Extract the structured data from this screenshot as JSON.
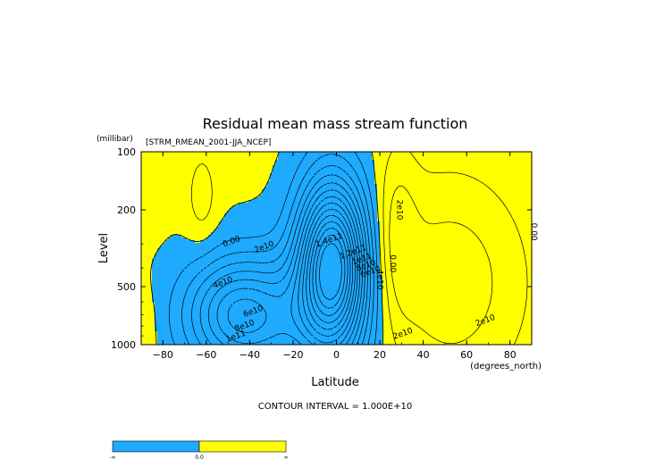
{
  "chart_data": {
    "type": "contour",
    "title": "Residual mean mass stream function",
    "subtitle": "[STRM_RMEAN_2001-JJA_NCEP]",
    "xlabel": "Latitude",
    "xunits": "(degrees_north)",
    "ylabel": "Level",
    "yunits": "(millibar)",
    "xlim": [
      -90,
      90
    ],
    "ylim": [
      1000,
      100
    ],
    "yscale": "log",
    "x_ticks": [
      -80,
      -60,
      -40,
      -20,
      0,
      20,
      40,
      60,
      80
    ],
    "x_tick_labels": [
      "−80",
      "−60",
      "−40",
      "−20",
      "0",
      "20",
      "40",
      "60",
      "80"
    ],
    "y_ticks": [
      100,
      200,
      500,
      1000
    ],
    "y_tick_labels": [
      "100",
      "200",
      "500",
      "1000"
    ],
    "footer": "CONTOUR INTERVAL = 1.000E+10",
    "colorbar": {
      "labels": [
        "-∞",
        "0.0",
        "∞"
      ],
      "negative_color": "#1eaaff",
      "positive_color": "#ffff00"
    },
    "contour_labels": [
      {
        "text": "0.00",
        "lat": -48,
        "p": 300
      },
      {
        "text": "2e10",
        "lat": -33,
        "p": 320
      },
      {
        "text": "4e10",
        "lat": -52,
        "p": 490
      },
      {
        "text": "6e10",
        "lat": -38,
        "p": 690
      },
      {
        "text": "8e10",
        "lat": -42,
        "p": 820
      },
      {
        "text": "1e11",
        "lat": -46,
        "p": 930
      },
      {
        "text": "1.4e11",
        "lat": -3,
        "p": 295
      },
      {
        "text": "1.2e11",
        "lat": 8,
        "p": 340
      },
      {
        "text": "1e11",
        "lat": 12,
        "p": 370
      },
      {
        "text": "8e10",
        "lat": 14,
        "p": 400
      },
      {
        "text": "6e10",
        "lat": 16,
        "p": 430
      },
      {
        "text": "4e10",
        "lat": 19,
        "p": 460
      },
      {
        "text": "0.00",
        "lat": 25,
        "p": 380
      },
      {
        "text": "2e10",
        "lat": 28,
        "p": 200
      },
      {
        "text": "0.00",
        "lat": 90,
        "p": 260
      },
      {
        "text": "2e10",
        "lat": 69,
        "p": 770
      },
      {
        "text": "2e10",
        "lat": 31,
        "p": 900
      }
    ]
  }
}
